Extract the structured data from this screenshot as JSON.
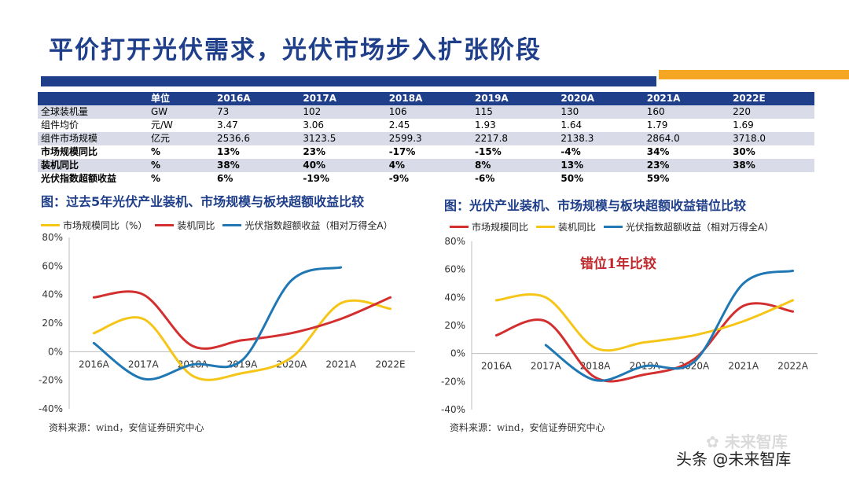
{
  "page": {
    "title": "平价打开光伏需求，光伏市场步入扩张阶段",
    "colors": {
      "navy": "#1f3f8a",
      "orange": "#f5a623",
      "band": "#d9dce8"
    }
  },
  "table": {
    "headers": [
      "",
      "单位",
      "2016A",
      "2017A",
      "2018A",
      "2019A",
      "2020A",
      "2021A",
      "2022E"
    ],
    "rows": [
      {
        "label": "全球装机量",
        "unit": "GW",
        "values": [
          "73",
          "102",
          "106",
          "115",
          "130",
          "160",
          "220"
        ]
      },
      {
        "label": "组件均价",
        "unit": "元/W",
        "values": [
          "3.47",
          "3.06",
          "2.45",
          "1.93",
          "1.64",
          "1.79",
          "1.69"
        ]
      },
      {
        "label": "组件市场规模",
        "unit": "亿元",
        "values": [
          "2536.6",
          "3123.5",
          "2599.3",
          "2217.8",
          "2138.3",
          "2864.0",
          "3718.0"
        ]
      },
      {
        "label": "市场规模同比",
        "unit": "%",
        "values": [
          "13%",
          "23%",
          "-17%",
          "-15%",
          "-4%",
          "34%",
          "30%"
        ]
      },
      {
        "label": "装机同比",
        "unit": "%",
        "values": [
          "38%",
          "40%",
          "4%",
          "8%",
          "13%",
          "23%",
          "38%"
        ]
      },
      {
        "label": "光伏指数超额收益",
        "unit": "%",
        "values": [
          "6%",
          "-19%",
          "-9%",
          "-6%",
          "50%",
          "59%",
          ""
        ]
      }
    ]
  },
  "charts": {
    "left": {
      "title": "图：过去5年光伏产业装机、市场规模与板块超额收益比较",
      "source": "资料来源：wind，安信证券研究中心"
    },
    "right": {
      "title": "图：光伏产业装机、市场规模与板块超额收益错位比较",
      "source": "资料来源：wind，安信证券研究中心",
      "annotation": "错位1年比较"
    }
  },
  "chart_data": [
    {
      "type": "line",
      "categories": [
        "2016A",
        "2017A",
        "2018A",
        "2019A",
        "2020A",
        "2021A",
        "2022E"
      ],
      "ylim": [
        -40,
        80
      ],
      "yticks": [
        "-40%",
        "-20%",
        "0%",
        "20%",
        "40%",
        "60%",
        "80%"
      ],
      "series": [
        {
          "name": "市场规模同比（%）",
          "color": "#f5c518",
          "values": [
            13,
            23,
            -17,
            -15,
            -4,
            34,
            30
          ]
        },
        {
          "name": "装机同比",
          "color": "#d32f2f",
          "values": [
            38,
            40,
            4,
            8,
            13,
            23,
            38
          ]
        },
        {
          "name": "光伏指数超额收益（相对万得全A）",
          "color": "#1f77b4",
          "values": [
            6,
            -19,
            -9,
            -6,
            50,
            59,
            null
          ]
        }
      ]
    },
    {
      "type": "line",
      "categories": [
        "2016A",
        "2017A",
        "2018A",
        "2019A",
        "2020A",
        "2021A",
        "2022A"
      ],
      "ylim": [
        -40,
        80
      ],
      "yticks": [
        "-40%",
        "-20%",
        "0%",
        "20%",
        "40%",
        "60%",
        "80%"
      ],
      "series": [
        {
          "name": "市场规模同比",
          "color": "#d32f2f",
          "values": [
            13,
            23,
            -17,
            -15,
            -4,
            34,
            30
          ]
        },
        {
          "name": "装机同比",
          "color": "#f5c518",
          "values": [
            38,
            40,
            4,
            8,
            13,
            23,
            38
          ]
        },
        {
          "name": "光伏指数超额收益（相对万得全A）",
          "color": "#1f77b4",
          "values": [
            null,
            6,
            -19,
            -9,
            -6,
            50,
            59
          ]
        }
      ]
    }
  ],
  "watermark": {
    "text1": "未来智库",
    "text2": "头条 @未来智库"
  }
}
